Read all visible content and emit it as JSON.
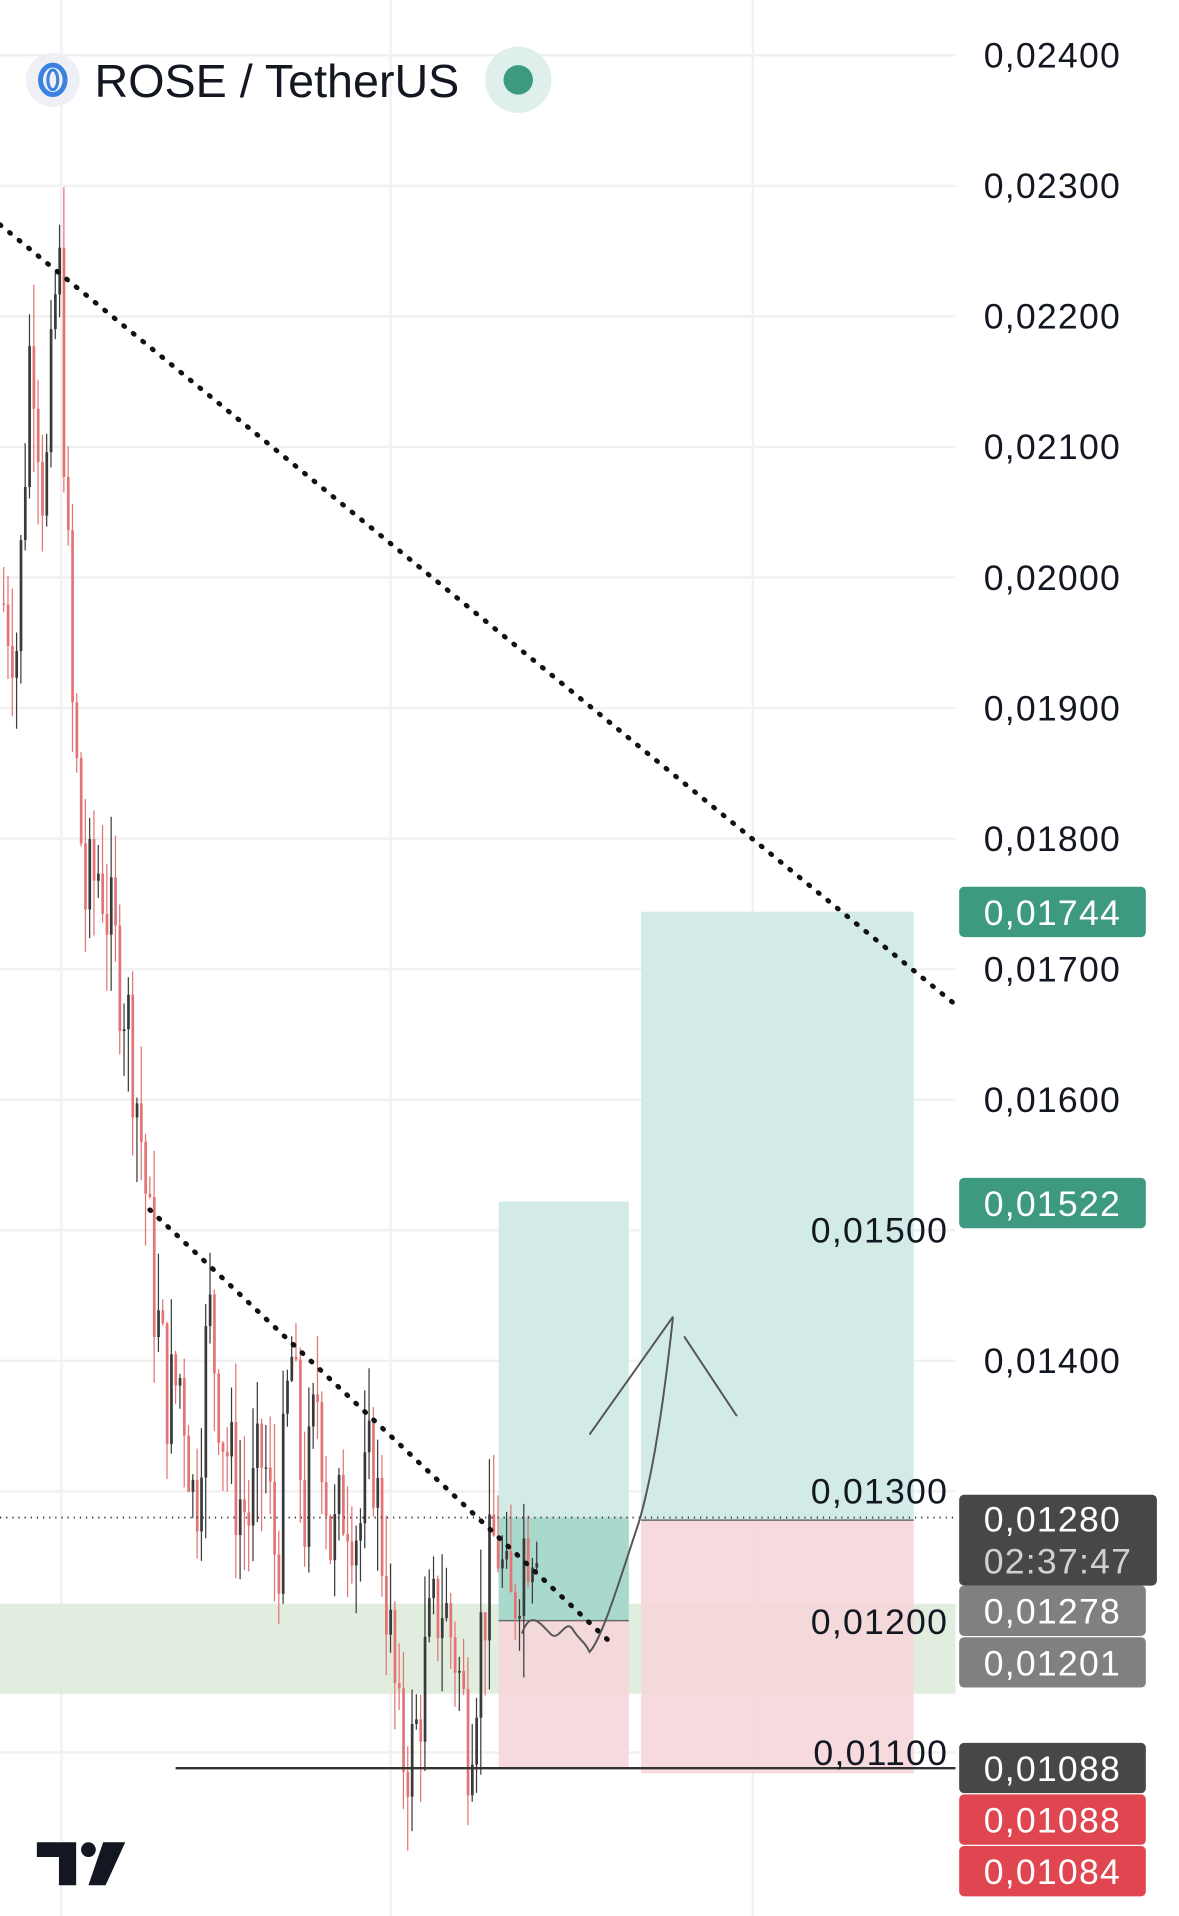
{
  "header": {
    "symbol_title": "ROSE / TetherUS",
    "symbol_icon": "oasis-rose-logo-icon",
    "status_icon": "market-open-dot-icon",
    "status_color": "#3d9a80"
  },
  "logo": {
    "text": "TV",
    "icon": "tradingview-logo-icon"
  },
  "chart_data": {
    "type": "candlestick",
    "title": "ROSE / TetherUS",
    "ylim": [
      0.0105,
      0.0245
    ],
    "y_ticks": [
      "0,02400",
      "0,02300",
      "0,02200",
      "0,02100",
      "0,02000",
      "0,01900",
      "0,01800",
      "0,01700",
      "0,01600",
      "0,01500",
      "0,01400",
      "0,01300",
      "0,01200",
      "0,01100"
    ],
    "y_tick_values": [
      0.024,
      0.023,
      0.022,
      0.021,
      0.02,
      0.019,
      0.018,
      0.017,
      0.016,
      0.015,
      0.014,
      0.013,
      0.012,
      0.011
    ],
    "grid": true,
    "approx_closes": [
      0.0198,
      0.0195,
      0.022,
      0.0205,
      0.0226,
      0.019,
      0.0175,
      0.0178,
      0.0172,
      0.0167,
      0.0158,
      0.0145,
      0.0137,
      0.0139,
      0.0128,
      0.0144,
      0.0135,
      0.013,
      0.0128,
      0.0133,
      0.0124,
      0.0141,
      0.0128,
      0.0138,
      0.0125,
      0.013,
      0.0127,
      0.0133,
      0.0122,
      0.011,
      0.011,
      0.0118,
      0.0122,
      0.0118,
      0.0111,
      0.012,
      0.0127,
      0.012,
      0.0126,
      0.0128
    ],
    "colors": {
      "up": "#3a3a3a",
      "down": "#e57373",
      "profit": "#d3ebe6",
      "loss": "#f6d6da",
      "support_zone": "#dcebd9"
    },
    "current_price": {
      "label": "0,01280",
      "countdown": "02:37:47",
      "value": 0.0128
    },
    "trendlines": [
      {
        "style": "dotted",
        "from_price": 0.02265,
        "to_price": 0.01668
      },
      {
        "style": "dotted",
        "from_price": 0.01522,
        "to_price": 0.01188
      }
    ],
    "support_zone": {
      "top": 0.01214,
      "bottom": 0.01145
    },
    "horizontal_line": 0.01088,
    "positions": [
      {
        "type": "long",
        "target": 0.01522,
        "entry": 0.01201,
        "stop": 0.01088
      },
      {
        "type": "long",
        "target": 0.01744,
        "entry": 0.01278,
        "stop": 0.01084
      }
    ],
    "price_tags": [
      {
        "label": "0,01744",
        "value": 0.01744,
        "color": "#3d9a80"
      },
      {
        "label": "0,01522",
        "value": 0.01522,
        "color": "#3d9a80"
      },
      {
        "label": "0,01278",
        "value": 0.01278,
        "color": "#808080"
      },
      {
        "label": "0,01201",
        "value": 0.01201,
        "color": "#808080"
      },
      {
        "label": "0,01088",
        "value": 0.01088,
        "color": "#474747"
      },
      {
        "label": "0,01088",
        "value": 0.01088,
        "color": "#e0464f"
      },
      {
        "label": "0,01084",
        "value": 0.01084,
        "color": "#e0464f"
      }
    ]
  }
}
